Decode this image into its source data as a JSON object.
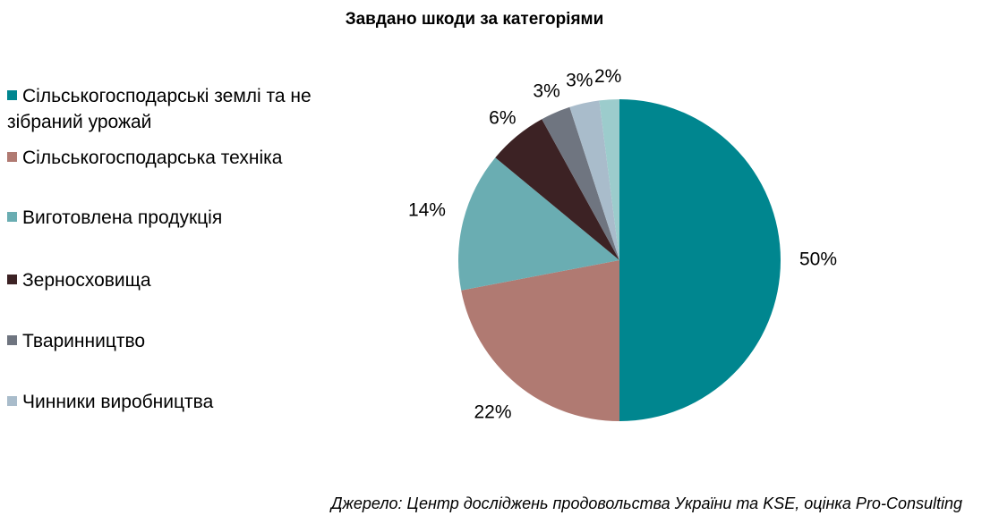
{
  "chart_data": {
    "type": "pie",
    "title": "Завдано шкоди за категоріями",
    "source": "Джерело: Центр досліджень продовольства України та KSE, оцінка Pro-Consulting",
    "categories": [
      "Сільськогосподарські землі та не зібраний урожай",
      "Сільськогосподарська техніка",
      "Виготовлена продукція",
      "Зерносховища",
      "Тваринництво",
      "Чинники виробництва",
      null
    ],
    "values": [
      50,
      22,
      14,
      6,
      3,
      3,
      2
    ],
    "value_labels": [
      "50%",
      "22%",
      "14%",
      "6%",
      "3%",
      "3%",
      "2%"
    ],
    "colors": [
      "#00868f",
      "#b07a72",
      "#6aadb2",
      "#3c2224",
      "#6f7580",
      "#a9bccb",
      "#9ccccc"
    ],
    "legend": "left"
  }
}
